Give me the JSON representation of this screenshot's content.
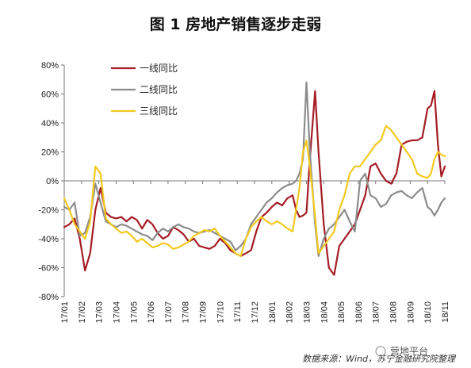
{
  "chart_data": {
    "type": "line",
    "title": "图 1  房地产销售逐步走弱",
    "ylim": [
      -80,
      80
    ],
    "yticks": [
      80,
      60,
      40,
      20,
      0,
      -20,
      -40,
      -60,
      -80
    ],
    "ytick_format": "%",
    "x_labels": [
      "17/01",
      "17/02",
      "17/03",
      "17/04",
      "17/05",
      "17/06",
      "17/07",
      "17/08",
      "17/09",
      "17/10",
      "17/11",
      "17/12",
      "18/01",
      "18/02",
      "18/03",
      "18/04",
      "18/05",
      "18/06",
      "18/07",
      "18/08",
      "18/09",
      "18/10",
      "18/11"
    ],
    "legend_position": "top-left",
    "grid": false,
    "series": [
      {
        "name": "一线同比",
        "color": "#a51c24",
        "x": [
          0,
          0.3,
          0.6,
          0.9,
          1.2,
          1.5,
          1.8,
          2.1,
          2.4,
          2.7,
          3.0,
          3.3,
          3.6,
          3.9,
          4.2,
          4.5,
          4.8,
          5.1,
          5.4,
          5.7,
          6.0,
          6.3,
          6.6,
          6.9,
          7.2,
          7.5,
          7.8,
          8.1,
          8.4,
          8.7,
          9.0,
          9.3,
          9.6,
          9.9,
          10.2,
          10.5,
          10.8,
          11.1,
          11.4,
          11.7,
          12.0,
          12.3,
          12.6,
          12.9,
          13.2,
          13.4,
          13.6,
          13.8,
          14.0,
          14.2,
          14.5,
          14.7,
          15.0,
          15.3,
          15.6,
          15.9,
          16.2,
          16.5,
          16.8,
          17.1,
          17.4,
          17.7,
          18.0,
          18.3,
          18.6,
          18.9,
          19.2,
          19.5,
          19.8,
          20.1,
          20.4,
          20.7,
          21.0,
          21.2,
          21.4,
          21.6,
          21.8,
          22.0
        ],
        "values": [
          -32,
          -30,
          -26,
          -40,
          -62,
          -50,
          -20,
          -5,
          -22,
          -25,
          -26,
          -25,
          -28,
          -25,
          -27,
          -33,
          -27,
          -30,
          -36,
          -40,
          -38,
          -32,
          -34,
          -37,
          -42,
          -40,
          -45,
          -46,
          -47,
          -45,
          -40,
          -43,
          -48,
          -50,
          -52,
          -50,
          -48,
          -35,
          -25,
          -22,
          -18,
          -15,
          -17,
          -12,
          -10,
          -20,
          -25,
          -24,
          -22,
          15,
          62,
          20,
          -30,
          -60,
          -65,
          -45,
          -40,
          -35,
          -30,
          -20,
          -10,
          10,
          12,
          5,
          0,
          -2,
          5,
          25,
          27,
          28,
          28,
          30,
          50,
          52,
          62,
          25,
          3,
          10
        ]
      },
      {
        "name": "二线同比",
        "color": "#8c8c8c",
        "x": [
          0,
          0.3,
          0.6,
          0.9,
          1.2,
          1.5,
          1.8,
          2.1,
          2.4,
          2.7,
          3.0,
          3.3,
          3.6,
          3.9,
          4.2,
          4.5,
          4.8,
          5.1,
          5.4,
          5.7,
          6.0,
          6.3,
          6.6,
          6.9,
          7.2,
          7.5,
          7.8,
          8.1,
          8.4,
          8.7,
          9.0,
          9.3,
          9.6,
          9.9,
          10.2,
          10.5,
          10.8,
          11.1,
          11.4,
          11.7,
          12.0,
          12.3,
          12.6,
          12.9,
          13.2,
          13.4,
          13.6,
          13.8,
          14.0,
          14.2,
          14.5,
          14.7,
          15.0,
          15.3,
          15.6,
          15.9,
          16.2,
          16.5,
          16.8,
          17.1,
          17.4,
          17.7,
          18.0,
          18.3,
          18.6,
          18.9,
          19.2,
          19.5,
          19.8,
          20.1,
          20.4,
          20.7,
          21.0,
          21.2,
          21.4,
          21.6,
          21.8,
          22.0
        ],
        "values": [
          -18,
          -20,
          -15,
          -38,
          -36,
          -25,
          -2,
          -15,
          -28,
          -30,
          -32,
          -30,
          -31,
          -33,
          -35,
          -37,
          -38,
          -41,
          -36,
          -33,
          -35,
          -32,
          -30,
          -32,
          -33,
          -35,
          -36,
          -35,
          -34,
          -36,
          -38,
          -40,
          -42,
          -48,
          -45,
          -40,
          -30,
          -25,
          -20,
          -15,
          -12,
          -8,
          -5,
          -3,
          -2,
          0,
          5,
          15,
          68,
          20,
          -30,
          -52,
          -40,
          -33,
          -30,
          -25,
          -20,
          -28,
          -35,
          0,
          5,
          -10,
          -12,
          -18,
          -16,
          -10,
          -8,
          -7,
          -10,
          -12,
          -8,
          -5,
          -18,
          -20,
          -24,
          -20,
          -15,
          -12
        ]
      },
      {
        "name": "三线同比",
        "color": "#f2c91f",
        "x": [
          0,
          0.3,
          0.6,
          0.9,
          1.2,
          1.5,
          1.8,
          2.1,
          2.4,
          2.7,
          3.0,
          3.3,
          3.6,
          3.9,
          4.2,
          4.5,
          4.8,
          5.1,
          5.4,
          5.7,
          6.0,
          6.3,
          6.6,
          6.9,
          7.2,
          7.5,
          7.8,
          8.1,
          8.4,
          8.7,
          9.0,
          9.3,
          9.6,
          9.9,
          10.2,
          10.5,
          10.8,
          11.1,
          11.4,
          11.7,
          12.0,
          12.3,
          12.6,
          12.9,
          13.2,
          13.4,
          13.6,
          13.8,
          14.0,
          14.2,
          14.5,
          14.7,
          15.0,
          15.3,
          15.6,
          15.9,
          16.2,
          16.5,
          16.8,
          17.1,
          17.4,
          17.7,
          18.0,
          18.3,
          18.6,
          18.9,
          19.2,
          19.5,
          19.8,
          20.1,
          20.4,
          20.7,
          21.0,
          21.2,
          21.4,
          21.6,
          21.8,
          22.0
        ],
        "values": [
          -12,
          -20,
          -30,
          -35,
          -40,
          -28,
          10,
          5,
          -26,
          -30,
          -33,
          -36,
          -35,
          -38,
          -42,
          -40,
          -43,
          -46,
          -45,
          -43,
          -44,
          -47,
          -46,
          -44,
          -42,
          -38,
          -36,
          -34,
          -35,
          -33,
          -38,
          -42,
          -46,
          -50,
          -52,
          -40,
          -32,
          -28,
          -25,
          -28,
          -30,
          -28,
          -30,
          -33,
          -35,
          -20,
          -5,
          20,
          28,
          10,
          -25,
          -50,
          -45,
          -40,
          -35,
          -20,
          -10,
          5,
          10,
          10,
          15,
          20,
          25,
          28,
          38,
          35,
          30,
          25,
          20,
          15,
          5,
          3,
          2,
          5,
          15,
          20,
          18,
          17
        ]
      }
    ]
  },
  "footer": {
    "source": "数据来源：Wind，苏宁金融研究院整理",
    "watermark": "营地平台"
  }
}
